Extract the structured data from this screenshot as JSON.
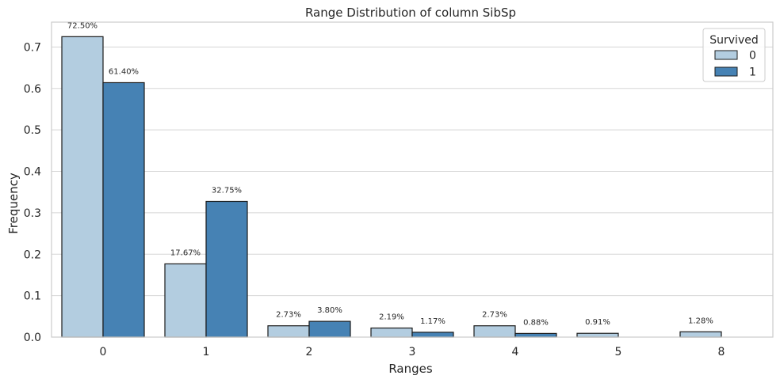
{
  "chart_data": {
    "type": "bar",
    "title": "Range Distribution of column SibSp",
    "xlabel": "Ranges",
    "ylabel": "Frequency",
    "categories": [
      "0",
      "1",
      "2",
      "3",
      "4",
      "5",
      "8"
    ],
    "yticks": [
      "0.0",
      "0.1",
      "0.2",
      "0.3",
      "0.4",
      "0.5",
      "0.6",
      "0.7"
    ],
    "ylim": [
      0,
      0.76
    ],
    "grid": true,
    "legend": {
      "title": "Survived",
      "position": "top-right"
    },
    "series": [
      {
        "name": "0",
        "color": "#b3cde0",
        "values": [
          0.725,
          0.1767,
          0.0273,
          0.0219,
          0.0273,
          0.0091,
          0.0128
        ],
        "labels": [
          "72.50%",
          "17.67%",
          "2.73%",
          "2.19%",
          "2.73%",
          "0.91%",
          "1.28%"
        ]
      },
      {
        "name": "1",
        "color": "#4682b4",
        "values": [
          0.614,
          0.3275,
          0.038,
          0.0117,
          0.0088,
          null,
          null
        ],
        "labels": [
          "61.40%",
          "32.75%",
          "3.80%",
          "1.17%",
          "0.88%",
          "",
          ""
        ]
      }
    ]
  }
}
